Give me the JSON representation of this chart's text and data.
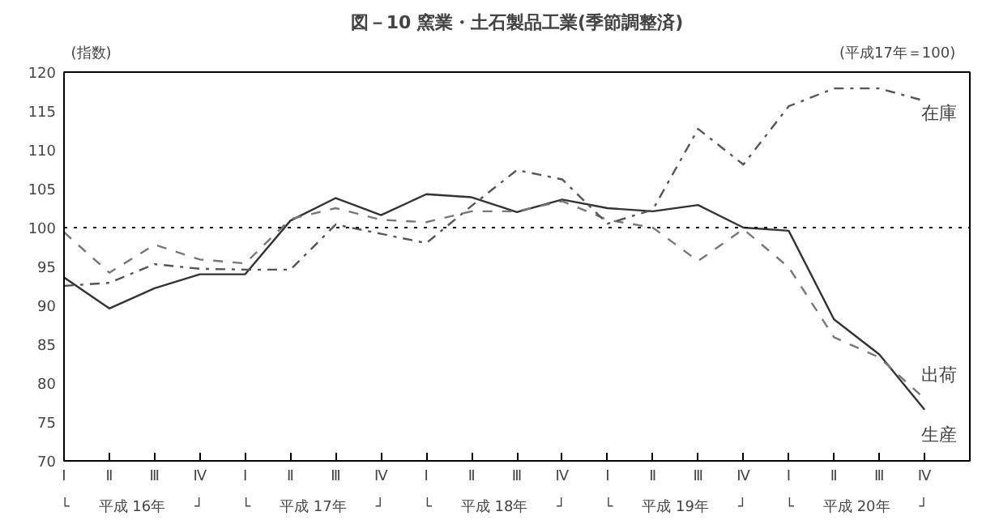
{
  "chart_data": {
    "type": "line",
    "title": "図－10 窯業・土石製品工業(季節調整済)",
    "ylabel": "(指数)",
    "annotations": [
      "(平成17年＝100)",
      "└　　平成 16年　　┘",
      "└　　平成 17年　　┘",
      "└　　平成 18年　　┘",
      "└　　平成 19年　　┘",
      "└　　平成 20年　　┘"
    ],
    "categories": [
      "Ⅰ",
      "Ⅱ",
      "Ⅲ",
      "Ⅳ",
      "Ⅰ",
      "Ⅱ",
      "Ⅲ",
      "Ⅳ",
      "Ⅰ",
      "Ⅱ",
      "Ⅲ",
      "Ⅳ",
      "Ⅰ",
      "Ⅱ",
      "Ⅲ",
      "Ⅳ",
      "Ⅰ",
      "Ⅱ",
      "Ⅲ",
      "Ⅳ"
    ],
    "ylim": [
      70,
      120
    ],
    "yticks": [
      70,
      75,
      80,
      85,
      90,
      95,
      100,
      105,
      110,
      115,
      120
    ],
    "grid": false,
    "legend": false,
    "marker": "none",
    "ref_lines": [
      {
        "axis": "y",
        "value": 100,
        "label": null,
        "color": "#000000",
        "line_style": "dotted"
      }
    ],
    "series": [
      {
        "name": "生産",
        "color": "#333333",
        "line_style": "solid",
        "values": [
          93.6,
          89.6,
          92.2,
          94.0,
          94.0,
          100.9,
          103.8,
          101.6,
          104.3,
          103.9,
          102.0,
          103.6,
          102.5,
          102.1,
          102.9,
          100.0,
          99.6,
          88.2,
          83.7,
          76.6
        ]
      },
      {
        "name": "出荷",
        "color": "#777777",
        "line_style": "dashed",
        "values": [
          99.4,
          94.2,
          97.8,
          95.9,
          95.4,
          101.1,
          102.5,
          101.0,
          100.7,
          102.1,
          102.1,
          103.4,
          101.0,
          100.0,
          95.7,
          99.8,
          94.9,
          85.9,
          83.3,
          78.0
        ]
      },
      {
        "name": "在庫",
        "color": "#555555",
        "line_style": "dashdot",
        "values": [
          92.5,
          92.9,
          95.3,
          94.7,
          94.6,
          94.6,
          100.4,
          99.2,
          98.0,
          102.8,
          107.4,
          106.2,
          100.5,
          102.3,
          112.7,
          108.1,
          115.6,
          117.9,
          117.9,
          116.3
        ]
      }
    ]
  }
}
